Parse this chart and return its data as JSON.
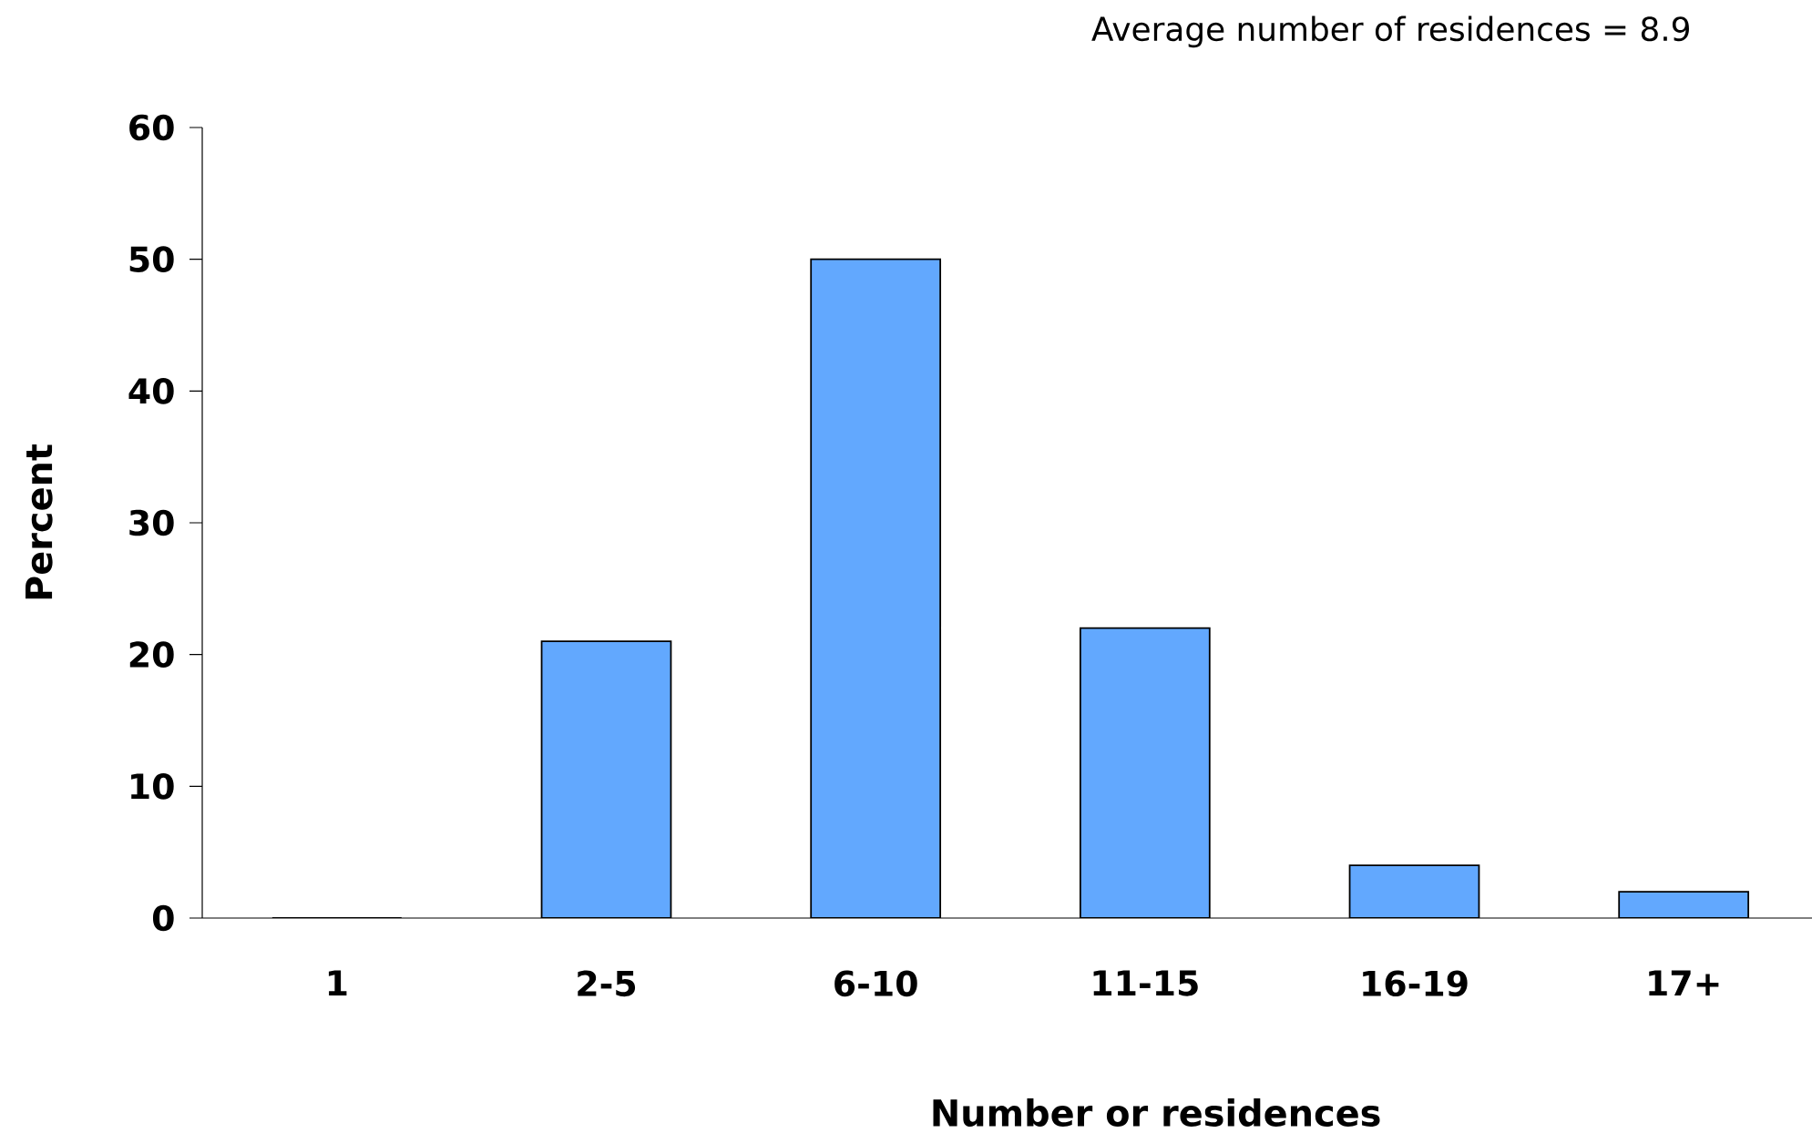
{
  "chart_data": {
    "type": "bar",
    "annotations": [
      "Average number of residences = 8.9"
    ],
    "xlabel": "Number or residences",
    "ylabel": "Percent",
    "categories": [
      "1",
      "2-5",
      "6-10",
      "11-15",
      "16-19",
      "17+"
    ],
    "values": [
      0,
      21,
      50,
      22,
      4,
      2
    ],
    "color": "#62a8fe",
    "ylim": [
      0,
      60
    ],
    "yticks": [
      0,
      10,
      20,
      30,
      40,
      50,
      60
    ],
    "grid": false
  }
}
